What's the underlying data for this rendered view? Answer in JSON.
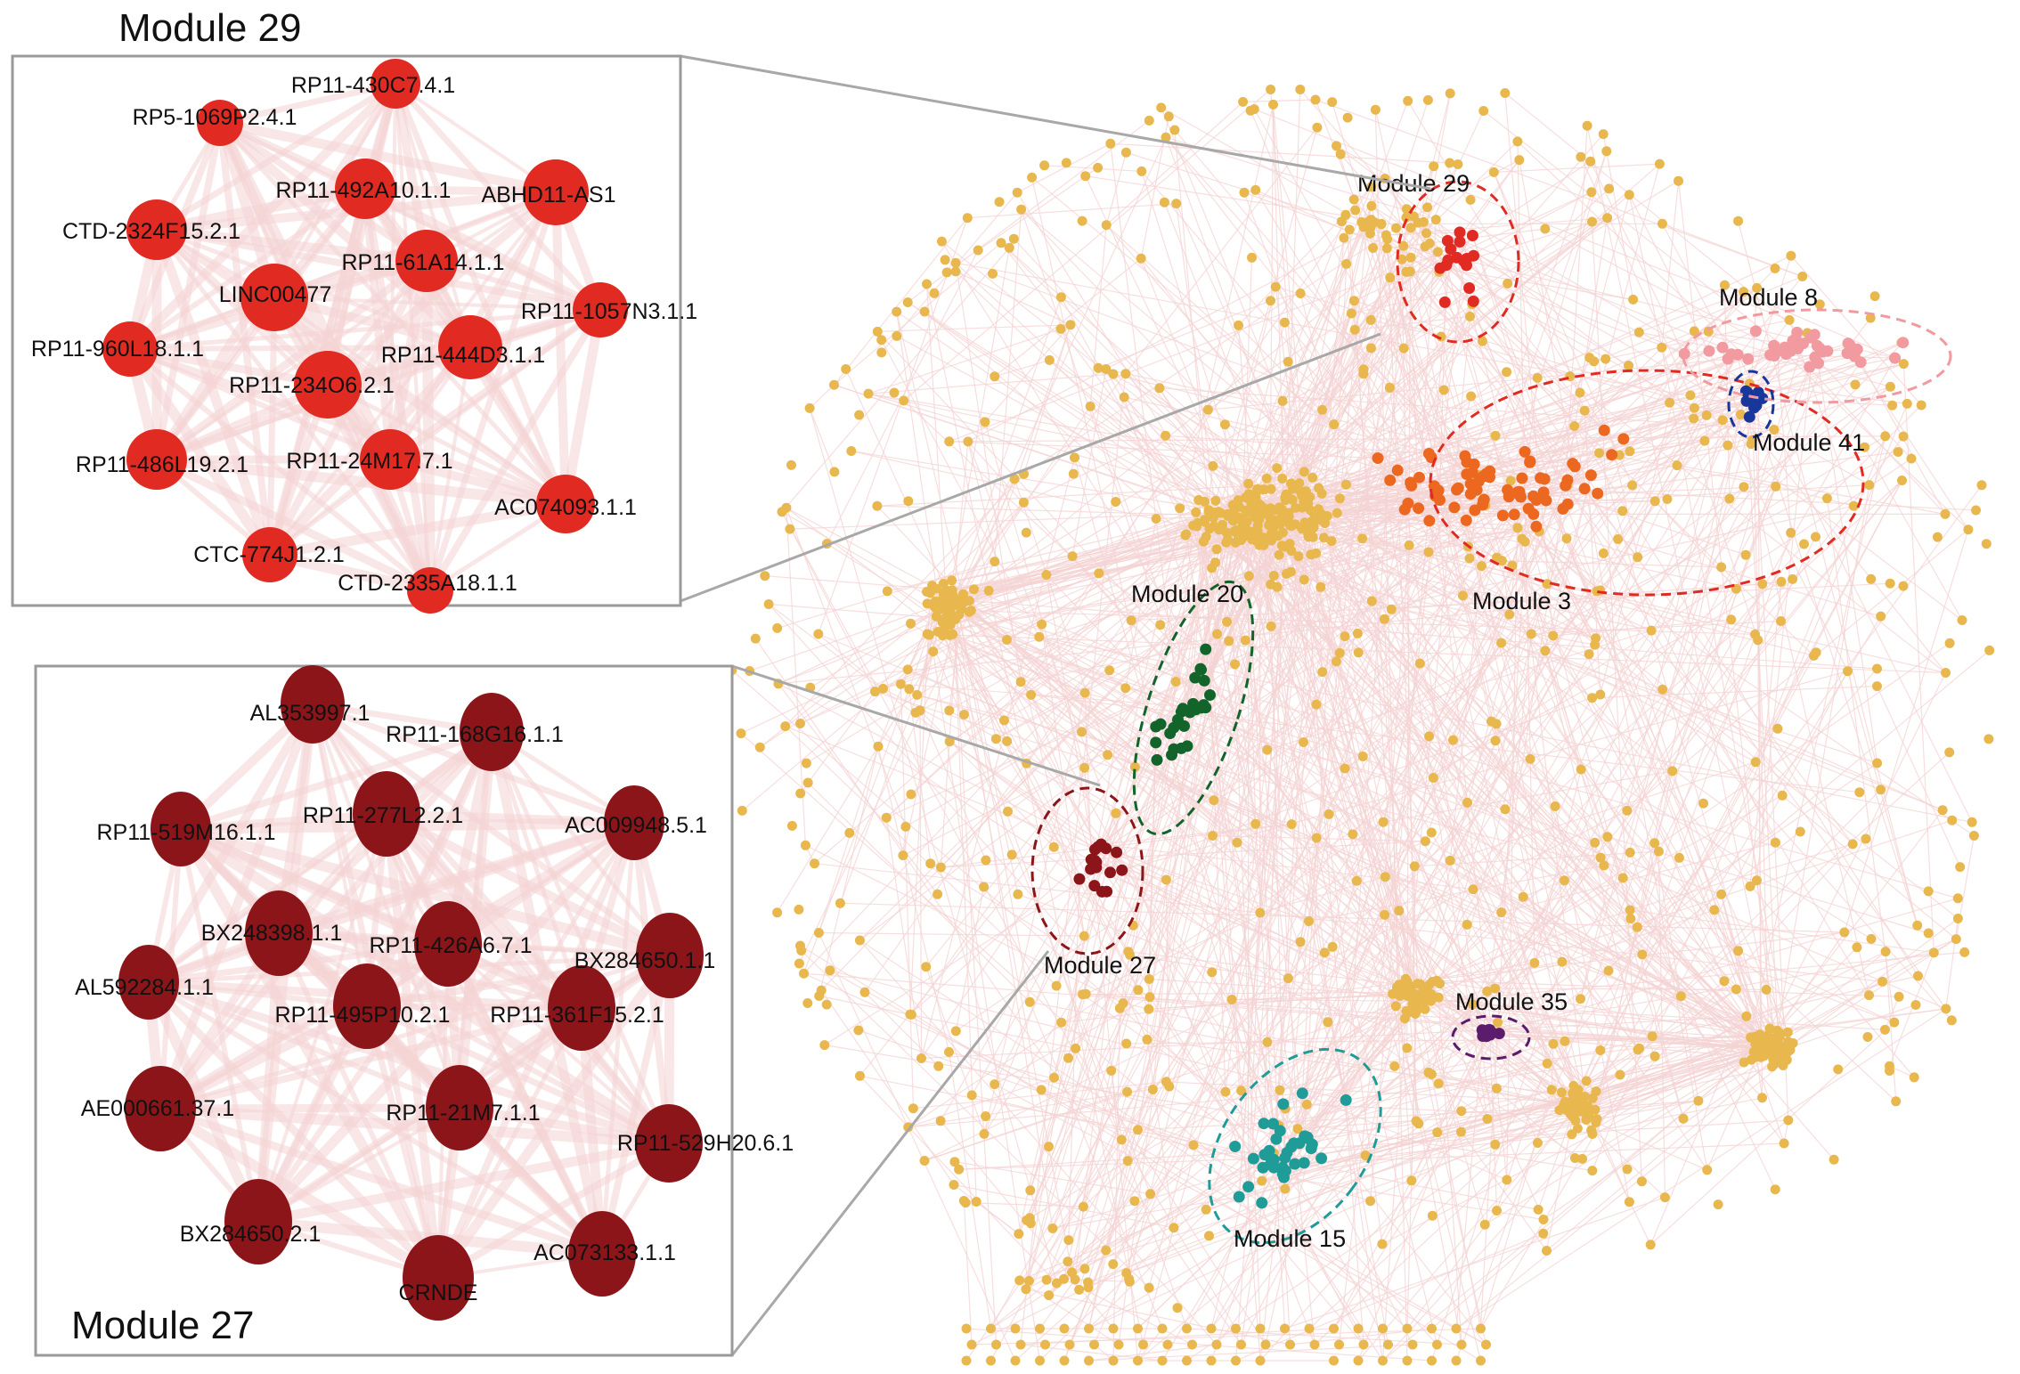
{
  "colors": {
    "background": "#ffffff",
    "edge": "#f4d3d3",
    "panel_border": "#9a9a9a",
    "connector": "#a8a8a8",
    "general_node": "#e8b84f",
    "module29": "#e12a22",
    "module27": "#8b1519",
    "module3": "#ec6820",
    "module8": "#f19aa0",
    "module41": "#17379b",
    "module20": "#12642b",
    "module15": "#1f9c98",
    "module35": "#5b1d6b"
  },
  "panels": {
    "module29": {
      "title": "Module 29",
      "nodes": [
        "RP11-430C7.4.1",
        "RP5-1069P2.4.1",
        "RP11-492A10.1.1",
        "ABHD11-AS1",
        "CTD-2324F15.2.1",
        "RP11-61A14.1.1",
        "LINC00477",
        "RP11-1057N3.1.1",
        "RP11-960L18.1.1",
        "RP11-444D3.1.1",
        "RP11-234O6.2.1",
        "RP11-486L19.2.1",
        "RP11-24M17.7.1",
        "AC074093.1.1",
        "CTC-774J1.2.1",
        "CTD-2335A18.1.1"
      ]
    },
    "module27": {
      "title": "Module 27",
      "nodes": [
        "AL353997.1",
        "RP11-168G16.1.1",
        "RP11-519M16.1.1",
        "RP11-277L2.2.1",
        "AC009948.5.1",
        "BX248398.1.1",
        "RP11-426A6.7.1",
        "BX284650.1.1",
        "AL592284.1.1",
        "RP11-495P10.2.1",
        "RP11-361F15.2.1",
        "AE000661.37.1",
        "RP11-21M7.1.1",
        "RP11-529H20.6.1",
        "BX284650.2.1",
        "AC073133.1.1",
        "CRNDE"
      ]
    }
  },
  "network_modules": [
    "Module 29",
    "Module 8",
    "Module 41",
    "Module 3",
    "Module 20",
    "Module 27",
    "Module 35",
    "Module 15"
  ]
}
